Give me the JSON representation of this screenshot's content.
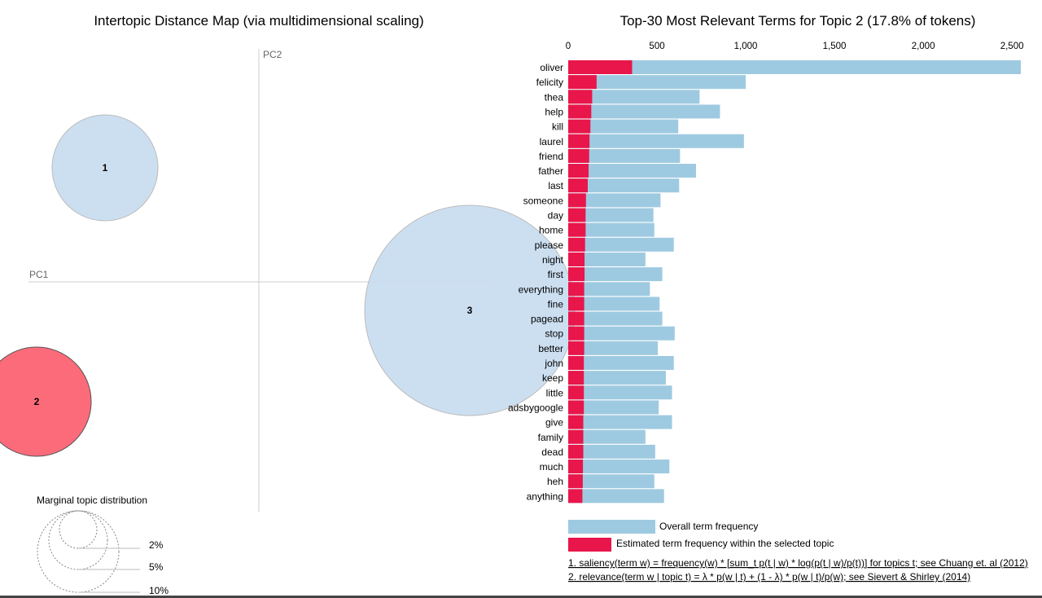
{
  "colors": {
    "overall": "#9ecae1",
    "topic": "#e8164a",
    "circle_default": "#c6dbef",
    "circle_selected": "#fc6b7a"
  },
  "left_panel": {
    "title": "Intertopic Distance Map (via multidimensional scaling)",
    "pc1_label": "PC1",
    "pc2_label": "PC2",
    "marginal_title": "Marginal topic distribution",
    "marginal_levels": [
      "2%",
      "5%",
      "10%"
    ]
  },
  "chart_data": [
    {
      "type": "scatter",
      "title": "Intertopic Distance Map (via multidimensional scaling)",
      "xlabel": "PC1",
      "ylabel": "PC2",
      "selected_topic": "2",
      "topics": [
        {
          "id": "1",
          "pc1": -0.27,
          "pc2": 0.2
        },
        {
          "id": "2",
          "pc1": -0.39,
          "pc2": -0.21
        },
        {
          "id": "3",
          "pc1": 0.37,
          "pc2": -0.05
        }
      ]
    },
    {
      "type": "bar",
      "orientation": "horizontal",
      "title": "Top-30 Most Relevant Terms for Topic 2 (17.8% of tokens)",
      "xlim": [
        0,
        2550
      ],
      "ticks": [
        {
          "value": 0,
          "label": "0"
        },
        {
          "value": 500,
          "label": "500"
        },
        {
          "value": 1000,
          "label": "1,000"
        },
        {
          "value": 1500,
          "label": "1,500"
        },
        {
          "value": 2000,
          "label": "2,000"
        },
        {
          "value": 2500,
          "label": "2,500"
        }
      ],
      "categories": [
        "oliver",
        "felicity",
        "thea",
        "help",
        "kill",
        "laurel",
        "friend",
        "father",
        "last",
        "someone",
        "day",
        "home",
        "please",
        "night",
        "first",
        "everything",
        "fine",
        "pagead",
        "stop",
        "better",
        "john",
        "keep",
        "little",
        "adsbygoogle",
        "give",
        "family",
        "dead",
        "much",
        "heh",
        "anything"
      ],
      "series": [
        {
          "name": "Overall term frequency",
          "values": [
            2550,
            1000,
            740,
            855,
            620,
            990,
            630,
            720,
            625,
            520,
            480,
            485,
            595,
            435,
            530,
            460,
            515,
            530,
            600,
            505,
            595,
            550,
            585,
            510,
            585,
            435,
            490,
            570,
            485,
            540
          ]
        },
        {
          "name": "Estimated term frequency within the selected topic",
          "values": [
            360,
            160,
            135,
            130,
            125,
            120,
            118,
            115,
            110,
            100,
            98,
            98,
            95,
            92,
            92,
            90,
            90,
            90,
            90,
            90,
            88,
            88,
            88,
            88,
            85,
            85,
            85,
            83,
            82,
            80
          ]
        }
      ]
    }
  ],
  "legend": {
    "overall": "Overall term frequency",
    "topic": "Estimated term frequency within the selected topic"
  },
  "notes": [
    "1. saliency(term w) = frequency(w) * [sum_t p(t | w) * log(p(t | w)/p(t))] for topics t; see Chuang et. al (2012)",
    "2. relevance(term w | topic t) = λ * p(w | t) + (1 - λ) * p(w | t)/p(w); see Sievert & Shirley (2014)"
  ]
}
